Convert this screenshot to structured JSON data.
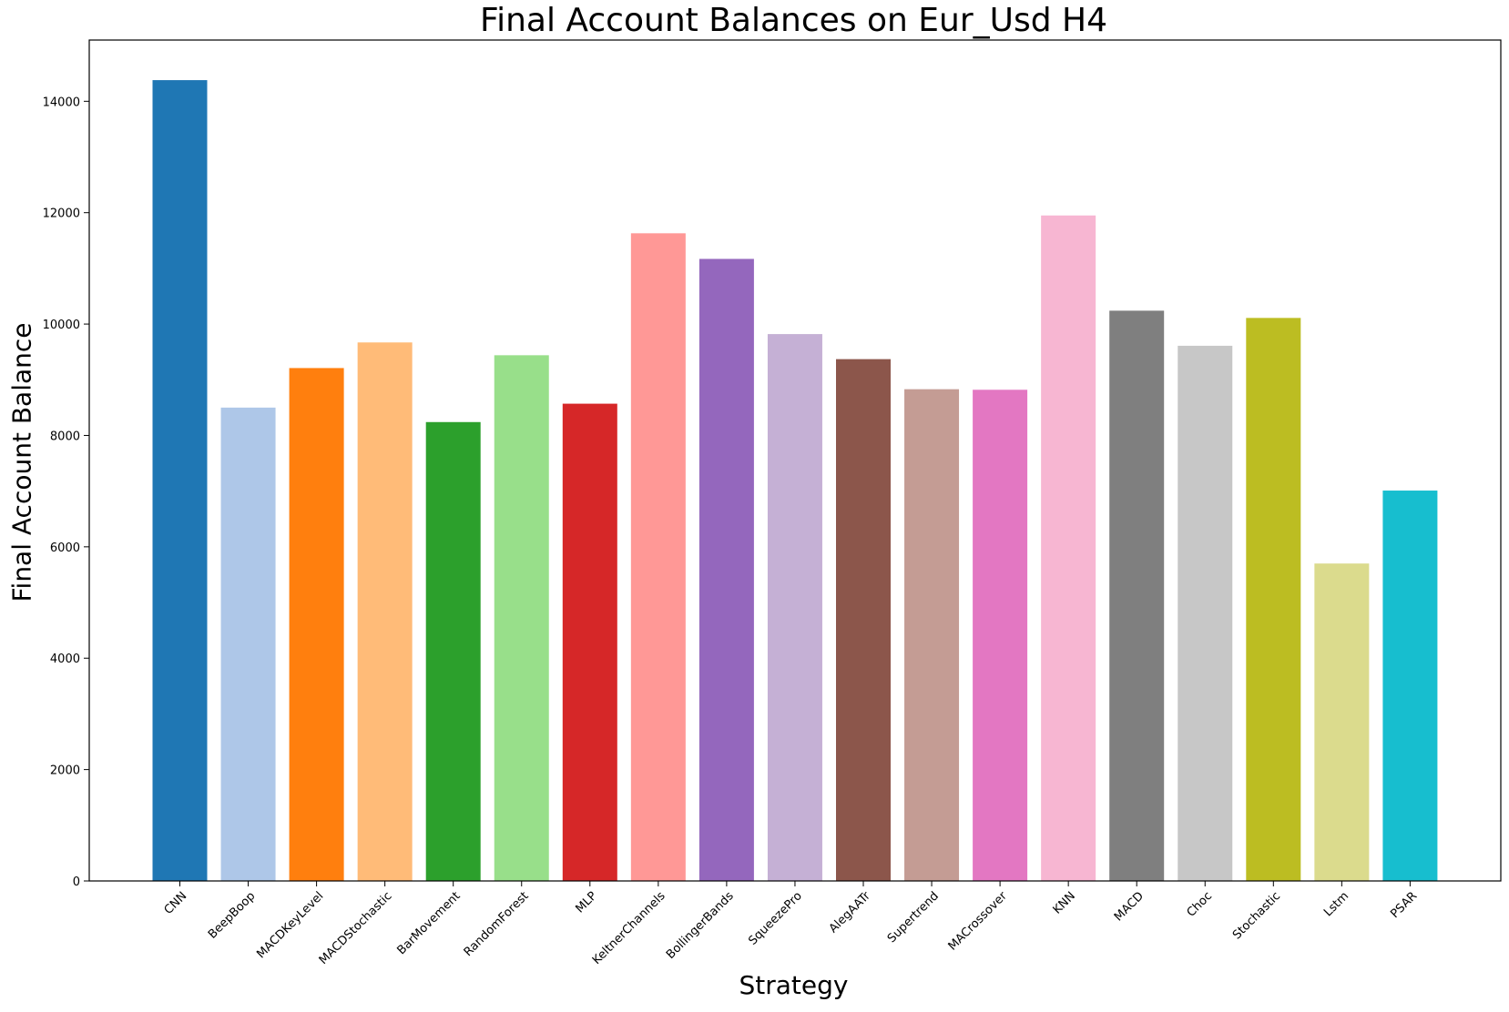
{
  "chart_data": {
    "type": "bar",
    "title": "Final Account Balances on Eur_Usd H4",
    "xlabel": "Strategy",
    "ylabel": "Final Account Balance",
    "ylim": [
      0,
      15100
    ],
    "yticks": [
      0,
      2000,
      4000,
      6000,
      8000,
      10000,
      12000,
      14000
    ],
    "grid": false,
    "categories": [
      "CNN",
      "BeepBoop",
      "MACDKeyLevel",
      "MACDStochastic",
      "BarMovement",
      "RandomForest",
      "MLP",
      "KeltnerChannels",
      "BollingerBands",
      "SqueezePro",
      "AlegAATr",
      "Supertrend",
      "MACrossover",
      "KNN",
      "MACD",
      "Choc",
      "Stochastic",
      "Lstm",
      "PSAR"
    ],
    "values": [
      14380,
      8500,
      9210,
      9670,
      8240,
      9440,
      8570,
      11630,
      11170,
      9820,
      9370,
      8830,
      8820,
      11950,
      10240,
      9610,
      10110,
      5700,
      7010
    ],
    "colors": [
      "#1f77b4",
      "#aec7e8",
      "#ff7f0e",
      "#ffbb78",
      "#2ca02c",
      "#98df8a",
      "#d62728",
      "#ff9896",
      "#9467bd",
      "#c5b0d5",
      "#8c564b",
      "#c49c94",
      "#e377c2",
      "#f7b6d2",
      "#7f7f7f",
      "#c7c7c7",
      "#bcbd22",
      "#dbdb8d",
      "#17becf"
    ]
  }
}
